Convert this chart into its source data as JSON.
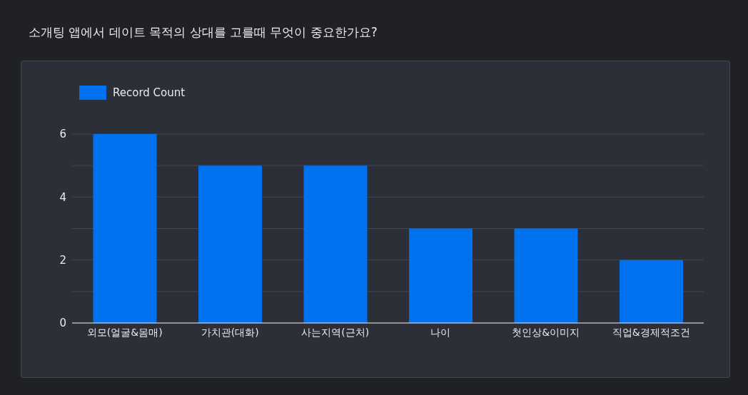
{
  "chart_data": {
    "type": "bar",
    "title": "소개팅 앱에서 데이트 목적의 상대를 고를때 무엇이 중요한가요?",
    "categories": [
      "외모(얼굴&몸매)",
      "가치관(대화)",
      "사는지역(근처)",
      "나이",
      "첫인상&이미지",
      "직업&경제적조건"
    ],
    "series": [
      {
        "name": "Record Count",
        "color": "#0072f0",
        "values": [
          6,
          5,
          5,
          3,
          3,
          2
        ]
      }
    ],
    "ylim": [
      0,
      6
    ],
    "yticks": [
      0,
      {
        "value": 1,
        "label": null
      },
      2,
      {
        "value": 3,
        "label": null
      },
      4,
      {
        "value": 5,
        "label": null
      },
      6
    ],
    "grid": "y",
    "legend": "top left"
  }
}
